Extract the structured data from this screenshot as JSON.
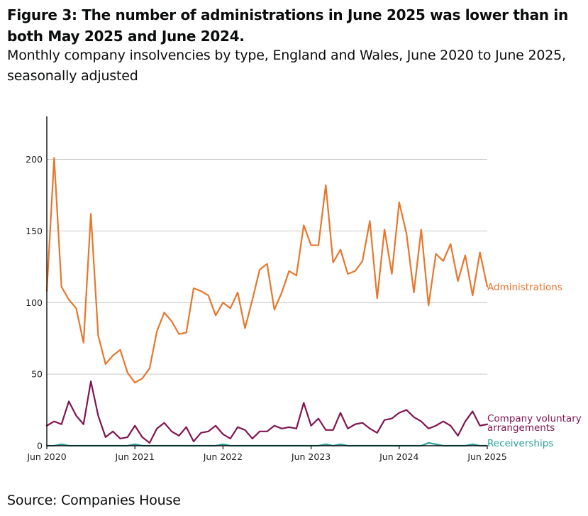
{
  "title": "Figure 3: The number of administrations in June 2025 was lower than in both May 2025 and June 2024.",
  "subtitle": "Monthly company insolvencies by type, England and Wales, June 2020 to June 2025, seasonally adjusted",
  "source": "Source: Companies House",
  "chart_data": {
    "type": "line",
    "xlabel": "",
    "ylabel": "",
    "ylim": [
      0,
      230
    ],
    "yticks": [
      0,
      50,
      100,
      150,
      200
    ],
    "grid": true,
    "legend": "inline-right",
    "x_start": "Jun 2020",
    "x_ticks": [
      "Jun 2020",
      "Jun 2021",
      "Jun 2022",
      "Jun 2023",
      "Jun 2024",
      "Jun 2025"
    ],
    "series": [
      {
        "name": "Administrations",
        "color": "#e8762b",
        "values": [
          108,
          201,
          111,
          102,
          96,
          72,
          162,
          77,
          57,
          63,
          67,
          51,
          44,
          47,
          54,
          80,
          93,
          87,
          78,
          79,
          110,
          108,
          105,
          91,
          100,
          96,
          107,
          82,
          102,
          123,
          127,
          95,
          107,
          122,
          119,
          154,
          140,
          140,
          182,
          128,
          137,
          120,
          122,
          129,
          157,
          103,
          151,
          120,
          170,
          148,
          107,
          151,
          98,
          134,
          129,
          141,
          115,
          133,
          105,
          135,
          111
        ]
      },
      {
        "name": "Company voluntary arrangements",
        "color": "#801650",
        "values": [
          14,
          17,
          15,
          31,
          21,
          15,
          45,
          21,
          6,
          10,
          5,
          6,
          14,
          6,
          2,
          12,
          16,
          10,
          7,
          13,
          3,
          9,
          10,
          14,
          8,
          5,
          13,
          11,
          5,
          10,
          10,
          14,
          12,
          13,
          12,
          30,
          14,
          19,
          11,
          11,
          23,
          12,
          15,
          16,
          12,
          9,
          18,
          19,
          23,
          25,
          20,
          17,
          12,
          14,
          17,
          14,
          7,
          17,
          24,
          14,
          15
        ]
      },
      {
        "name": "Receiverships",
        "color": "#28a197",
        "values": [
          0,
          0,
          1,
          0,
          0,
          0,
          0,
          0,
          0,
          0,
          0,
          0,
          1,
          0,
          0,
          0,
          0,
          0,
          0,
          0,
          0,
          0,
          0,
          0,
          1,
          0,
          0,
          0,
          0,
          0,
          0,
          0,
          0,
          0,
          0,
          0,
          0,
          0,
          1,
          0,
          1,
          0,
          0,
          0,
          0,
          0,
          0,
          0,
          0,
          0,
          0,
          0,
          2,
          1,
          0,
          0,
          0,
          0,
          1,
          0,
          0
        ]
      }
    ],
    "series_labels": [
      {
        "lines": [
          "Administrations"
        ]
      },
      {
        "lines": [
          "Company voluntary",
          "arrangements"
        ]
      },
      {
        "lines": [
          "Receiverships"
        ]
      }
    ]
  }
}
